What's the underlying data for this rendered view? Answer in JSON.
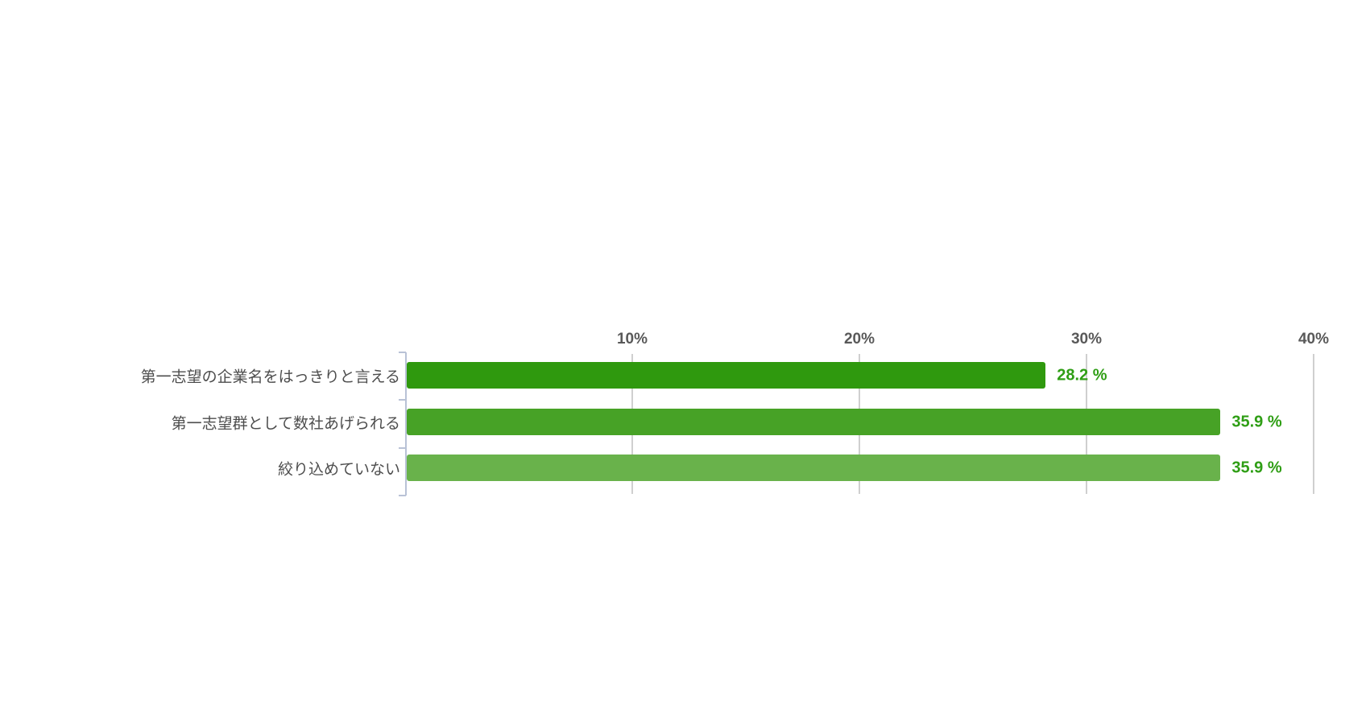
{
  "chart_data": {
    "type": "bar",
    "orientation": "horizontal",
    "title": "",
    "categories": [
      "第一志望の企業名をはっきりと言える",
      "第一志望群として数社あげられる",
      "絞り込めていない"
    ],
    "values": [
      28.2,
      35.9,
      35.9
    ],
    "value_labels": [
      "28.2 %",
      "35.9 %",
      "35.9 %"
    ],
    "x_tick_labels": [
      "10%",
      "20%",
      "30%",
      "40%"
    ],
    "x_tick_values": [
      10,
      20,
      30,
      40
    ],
    "xlim": [
      0,
      40
    ],
    "grid": true,
    "legend": "none",
    "colors": {
      "bar_colors": [
        "#2f990e",
        "#47a226",
        "#69b24b"
      ],
      "value_label": "#2f9e15",
      "axis_tick_label": "#595959",
      "category_label": "#4d4d4d",
      "gridline": "#cfcfcf",
      "axis_line": "#b9c2d6",
      "background": "#ffffff"
    }
  }
}
